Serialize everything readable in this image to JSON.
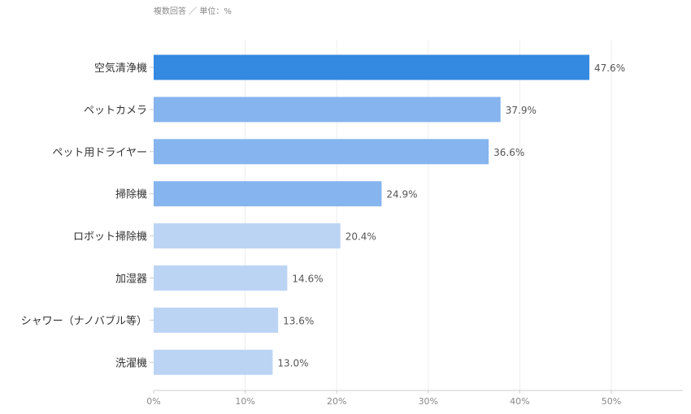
{
  "note": "複数回答 ／ 単位：%",
  "colors": {
    "dark": "#3489E0",
    "mid": "#86B4EE",
    "light": "#BCD4F4",
    "grid": "#EDEDED",
    "axis": "#CCCCCC"
  },
  "chart_data": {
    "type": "bar",
    "orientation": "horizontal",
    "categories": [
      "空気清浄機",
      "ペットカメラ",
      "ペット用ドライヤー",
      "掃除機",
      "ロボット掃除機",
      "加湿器",
      "シャワー（ナノバブル等）",
      "洗濯機"
    ],
    "values": [
      47.6,
      37.9,
      36.6,
      24.9,
      20.4,
      14.6,
      13.6,
      13.0
    ],
    "value_labels": [
      "47.6%",
      "37.9%",
      "36.6%",
      "24.9%",
      "20.4%",
      "14.6%",
      "13.6%",
      "13.0%"
    ],
    "bar_colors": [
      "dark",
      "mid",
      "mid",
      "mid",
      "light",
      "light",
      "light",
      "light"
    ],
    "xticks": [
      0,
      10,
      20,
      30,
      40,
      50
    ],
    "xtick_labels": [
      "0%",
      "10%",
      "20%",
      "30%",
      "40%",
      "50%"
    ],
    "xlim": [
      0,
      58
    ],
    "grid": true,
    "legend": "none"
  }
}
